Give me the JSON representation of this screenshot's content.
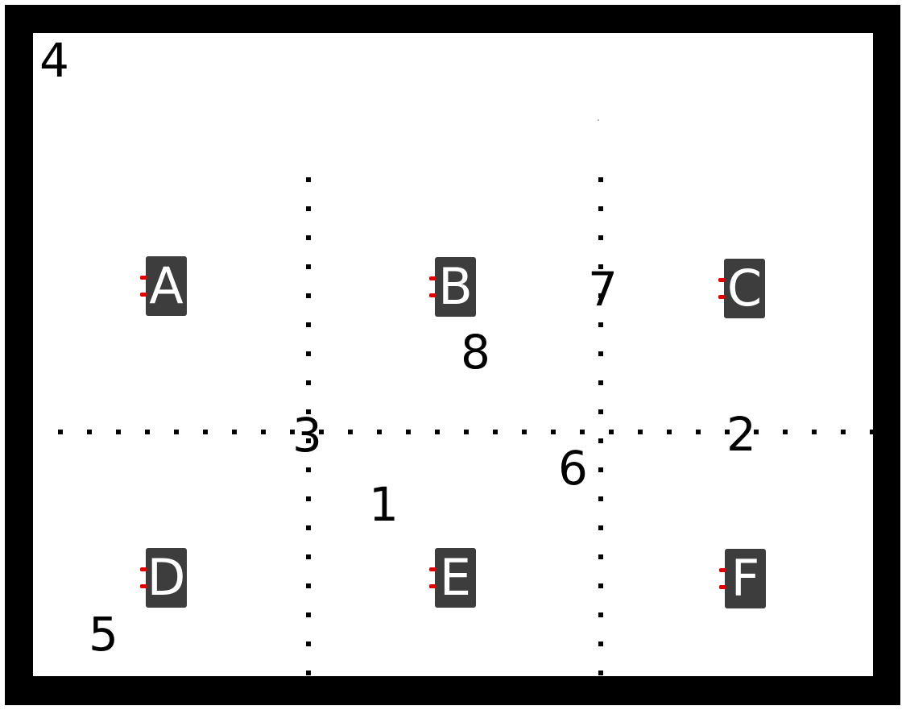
{
  "colors": {
    "border": "#000000",
    "background": "#ffffff",
    "box_fill": "#3d3d3d",
    "box_text": "#ffffff",
    "pin": "#e00000",
    "dotted_line": "#000000"
  },
  "boxes": [
    {
      "label": "A"
    },
    {
      "label": "B"
    },
    {
      "label": "C"
    },
    {
      "label": "D"
    },
    {
      "label": "E"
    },
    {
      "label": "F"
    }
  ],
  "numbers": [
    "4",
    "7",
    "8",
    "3",
    "2",
    "6",
    "1",
    "5"
  ]
}
